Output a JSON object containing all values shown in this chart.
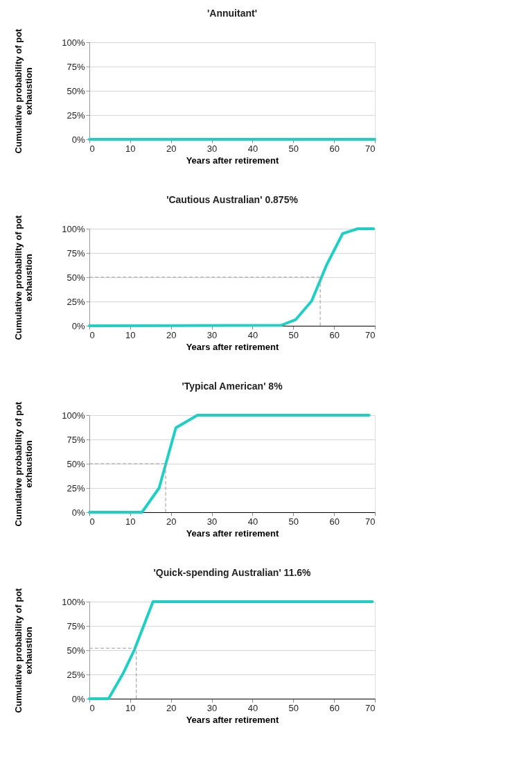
{
  "chart_data": [
    {
      "type": "line",
      "title": "'Annuitant'",
      "xlabel": "Years after retirement",
      "ylabel": "Cumulative probability of pot exhaustion",
      "x": [
        0,
        70
      ],
      "series": [
        {
          "color": "#1fcfc4",
          "values": [
            0,
            0
          ]
        }
      ],
      "xlim": [
        0,
        70
      ],
      "xticks": [
        0,
        10,
        20,
        30,
        40,
        50,
        60,
        70
      ],
      "ylim": [
        0,
        100
      ],
      "yticks": [
        {
          "value": 0,
          "label": "0%"
        },
        {
          "value": 25,
          "label": "25%"
        },
        {
          "value": 50,
          "label": "50%"
        },
        {
          "value": 75,
          "label": "75%"
        },
        {
          "value": 100,
          "label": "100%"
        }
      ],
      "grid": "y",
      "marker": "none",
      "line_style": "solid"
    },
    {
      "type": "line",
      "title": "'Cautious Australian' 0.875%",
      "xlabel": "Years after retirement",
      "ylabel": "Cumulative probability of pot exhaustion",
      "x": [
        0,
        47,
        50.6,
        54.5,
        58.2,
        62.1,
        65.8,
        69.7
      ],
      "series": [
        {
          "color": "#1fcfc4",
          "values": [
            0,
            0.5,
            6.4,
            25.5,
            63,
            95,
            100,
            100
          ]
        }
      ],
      "xlim": [
        0,
        70
      ],
      "xticks": [
        0,
        10,
        20,
        30,
        40,
        50,
        60,
        70
      ],
      "ylim": [
        0,
        100
      ],
      "yticks": [
        {
          "value": 0,
          "label": "0%"
        },
        {
          "value": 25,
          "label": "25%"
        },
        {
          "value": 50,
          "label": "50%"
        },
        {
          "value": 75,
          "label": "75%"
        },
        {
          "value": 100,
          "label": "100%"
        }
      ],
      "ref_lines": [
        {
          "axis": "y",
          "value": 50,
          "color": "#999999",
          "line_style": "dashed"
        },
        {
          "axis": "x",
          "value": 56.6,
          "color": "#999999",
          "line_style": "dashed"
        }
      ],
      "grid": "y",
      "legend": false,
      "marker": "none",
      "line_style": "solid"
    },
    {
      "type": "line",
      "title": "'Typical American' 8%",
      "xlabel": "Years after retirement",
      "ylabel": "Cumulative probability of pot exhaustion",
      "x": [
        0,
        12.9,
        17.1,
        21.2,
        26.5,
        29.5,
        68.6
      ],
      "series": [
        {
          "color": "#1fcfc4",
          "values": [
            0,
            0,
            25,
            87,
            100,
            100,
            100
          ]
        }
      ],
      "xlim": [
        0,
        70
      ],
      "xticks": [
        0,
        10,
        20,
        30,
        40,
        50,
        60,
        70
      ],
      "ylim": [
        0,
        100
      ],
      "yticks": [
        {
          "value": 0,
          "label": "0%"
        },
        {
          "value": 25,
          "label": "25%"
        },
        {
          "value": 50,
          "label": "50%"
        },
        {
          "value": 75,
          "label": "75%"
        },
        {
          "value": 100,
          "label": "100%"
        }
      ],
      "ref_lines": [
        {
          "axis": "y",
          "value": 50,
          "color": "#999999",
          "line_style": "dashed"
        },
        {
          "axis": "x",
          "value": 18.7,
          "color": "#999999",
          "line_style": "dashed"
        }
      ],
      "grid": "y",
      "legend": false,
      "marker": "none",
      "line_style": "solid"
    },
    {
      "type": "line",
      "title": "'Quick-spending Australian' 11.6%",
      "xlabel": "Years after retirement",
      "ylabel": "Cumulative probability of pot exhaustion",
      "x": [
        0,
        4.7,
        8.2,
        11.0,
        15.6,
        69.4
      ],
      "series": [
        {
          "color": "#1fcfc4",
          "values": [
            0,
            0,
            25.5,
            50,
            100,
            100
          ]
        }
      ],
      "xlim": [
        0,
        70
      ],
      "xticks": [
        0,
        10,
        20,
        30,
        40,
        50,
        60,
        70
      ],
      "ylim": [
        0,
        100
      ],
      "yticks": [
        {
          "value": 0,
          "label": "0%"
        },
        {
          "value": 25,
          "label": "25%"
        },
        {
          "value": 50,
          "label": "50%"
        },
        {
          "value": 75,
          "label": "75%"
        },
        {
          "value": 100,
          "label": "100%"
        }
      ],
      "ref_lines": [
        {
          "axis": "y",
          "value": 52,
          "color": "#999999",
          "line_style": "dashed"
        },
        {
          "axis": "x",
          "value": 11.5,
          "color": "#999999",
          "line_style": "dashed"
        }
      ],
      "grid": "y",
      "legend": false,
      "marker": "none",
      "line_style": "solid"
    }
  ]
}
